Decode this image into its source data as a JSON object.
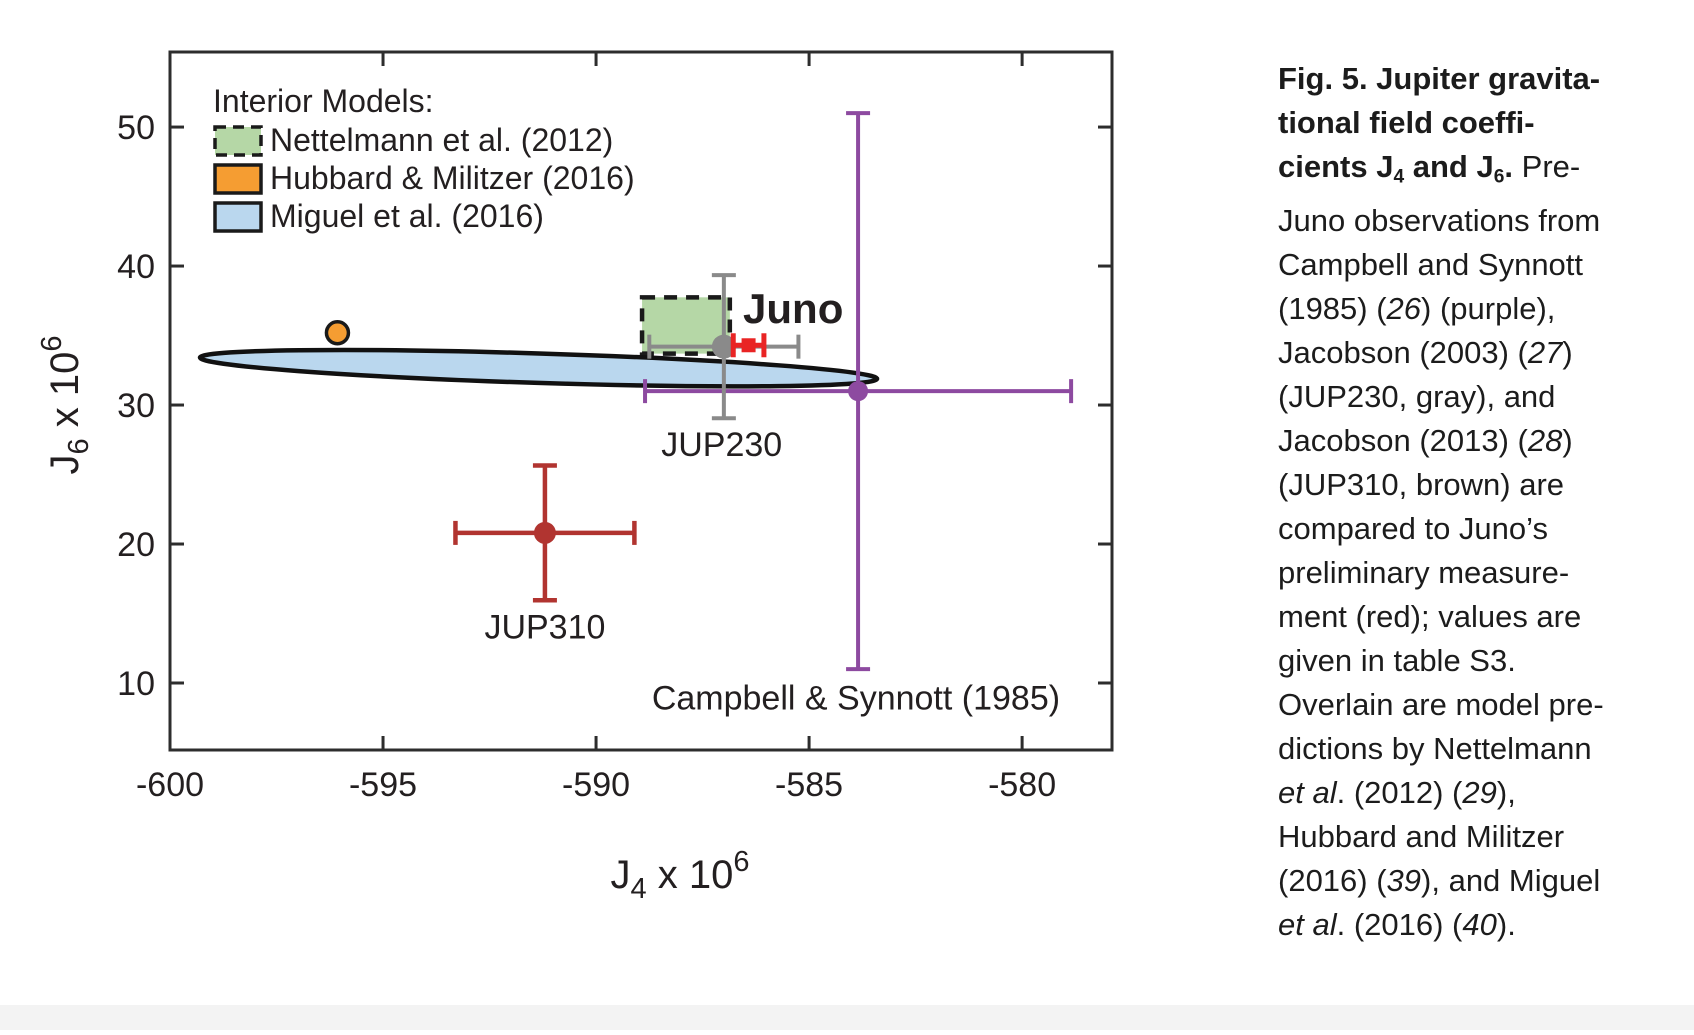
{
  "figure": {
    "kind": "scientific-figure",
    "bottom_strip_color": "#f3f3f3"
  },
  "chart_data": {
    "type": "scatter",
    "xlabel": {
      "pre": "J",
      "sub": "4",
      "mid": " x 10",
      "sup": "6"
    },
    "ylabel": {
      "pre": "J",
      "sub": "6",
      "mid": " x 10",
      "sup": "6"
    },
    "xlim": [
      -600.0,
      -577.89
    ],
    "ylim": [
      5.18,
      55.4
    ],
    "x_ticks": [
      -600,
      -595,
      -590,
      -585,
      -580
    ],
    "y_ticks": [
      10,
      20,
      30,
      40,
      50
    ],
    "grid": false,
    "frame_color": "#2d2d2d",
    "series": [
      {
        "slug": "campbell-synnott-1985",
        "name": "Campbell & Synnott (1985)",
        "x": -583.85,
        "y": 31.0,
        "xerr": 5.0,
        "yerr": 20.0,
        "color": "#8d4aa0",
        "marker": "circle",
        "r": 10,
        "lw": 4,
        "label": {
          "text": "Campbell & Synnott (1985)",
          "x": -583.9,
          "y": 8.1,
          "anchor": "middle",
          "size": 34
        }
      },
      {
        "slug": "jup230",
        "name": "JUP230, Jacobson (2003)",
        "x": -587.0,
        "y": 34.2,
        "xerr": 1.75,
        "yerr": 5.15,
        "color": "#8a8a8a",
        "marker": "circle",
        "r": 12,
        "lw": 4,
        "label": {
          "text": "JUP230",
          "x": -587.05,
          "y": 26.35,
          "anchor": "middle",
          "size": 34
        }
      },
      {
        "slug": "jup310",
        "name": "JUP310, Jacobson (2013)",
        "x": -591.2,
        "y": 20.8,
        "xerr": 2.1,
        "yerr": 4.85,
        "color": "#b13430",
        "marker": "circle",
        "r": 11,
        "lw": 4.5,
        "label": {
          "text": "JUP310",
          "x": -591.2,
          "y": 13.2,
          "anchor": "middle",
          "size": 34
        }
      },
      {
        "slug": "juno",
        "name": "Juno preliminary measurement",
        "x": -586.42,
        "y": 34.3,
        "xerr": 0.36,
        "yerr": 0,
        "color": "#e92424",
        "marker": "square",
        "r": 7,
        "lw": 5,
        "label": {
          "text": "Juno",
          "x": -586.55,
          "y": 35.9,
          "anchor": "start",
          "size": 42,
          "bold": true
        }
      }
    ],
    "models": [
      {
        "slug": "nettelmann-2012-box",
        "name": "Nettelmann et al. (2012)",
        "shape": "rect",
        "x": [
          -588.92,
          -586.86
        ],
        "y": [
          33.7,
          37.75
        ],
        "fill": "#b5d7a6",
        "stroke": "#1a1a1a",
        "dashed": true
      },
      {
        "slug": "hubbard-militzer-2016-point",
        "name": "Hubbard & Militzer (2016)",
        "shape": "point",
        "x": -596.07,
        "y": 35.2,
        "r": 11,
        "fill": "#f59d32",
        "stroke": "#1a1a1a"
      },
      {
        "slug": "miguel-2016-ellipse",
        "name": "Miguel et al. (2016)",
        "shape": "ellipse",
        "cx": -591.35,
        "cy": 32.65,
        "rx": 7.95,
        "ry": 1.06,
        "angle_deg": 1.8,
        "fill": "#bad7ee",
        "stroke": "#111111"
      }
    ],
    "legend": {
      "title": "Interior Models:",
      "position": "top-left-inside",
      "items": [
        {
          "label": "Nettelmann et al. (2012)",
          "fill": "#b5d7a6",
          "stroke": "#1a1a1a",
          "dashed": true
        },
        {
          "label": "Hubbard & Militzer (2016)",
          "fill": "#f59d32",
          "stroke": "#1a1a1a",
          "dashed": false
        },
        {
          "label": "Miguel et al. (2016)",
          "fill": "#bad7ee",
          "stroke": "#1a1a1a",
          "dashed": false
        }
      ]
    }
  },
  "caption": {
    "lines": [
      [
        [
          "b",
          "Fig. 5. Jupiter gravita-"
        ]
      ],
      [
        [
          "b",
          "tional field coeffi-"
        ]
      ],
      [
        [
          "b",
          "cients J"
        ],
        [
          "bsub",
          "4"
        ],
        [
          "b",
          " and J"
        ],
        [
          "bsub",
          "6"
        ],
        [
          "b",
          "."
        ],
        [
          "r",
          " Pre-"
        ]
      ],
      [
        [
          "r",
          "Juno observations from"
        ]
      ],
      [
        [
          "r",
          "Campbell and Synnott"
        ]
      ],
      [
        [
          "r",
          "(1985) ("
        ],
        [
          "i",
          "26"
        ],
        [
          "r",
          ") (purple),"
        ]
      ],
      [
        [
          "r",
          "Jacobson (2003) ("
        ],
        [
          "i",
          "27"
        ],
        [
          "r",
          ")"
        ]
      ],
      [
        [
          "r",
          "(JUP230, gray), and"
        ]
      ],
      [
        [
          "r",
          "Jacobson (2013) ("
        ],
        [
          "i",
          "28"
        ],
        [
          "r",
          ")"
        ]
      ],
      [
        [
          "r",
          "(JUP310, brown) are"
        ]
      ],
      [
        [
          "r",
          "compared to Juno’s"
        ]
      ],
      [
        [
          "r",
          "preliminary measure-"
        ]
      ],
      [
        [
          "r",
          "ment (red); values are"
        ]
      ],
      [
        [
          "r",
          "given in table S3."
        ]
      ],
      [
        [
          "r",
          "Overlain are model pre-"
        ]
      ],
      [
        [
          "r",
          "dictions by Nettelmann"
        ]
      ],
      [
        [
          "i",
          "et al"
        ],
        [
          "r",
          ". (2012) ("
        ],
        [
          "i",
          "29"
        ],
        [
          "r",
          "),"
        ]
      ],
      [
        [
          "r",
          "Hubbard and Militzer"
        ]
      ],
      [
        [
          "r",
          "(2016) ("
        ],
        [
          "i",
          "39"
        ],
        [
          "r",
          "), and Miguel"
        ]
      ],
      [
        [
          "i",
          "et al"
        ],
        [
          "r",
          ". (2016) ("
        ],
        [
          "i",
          "40"
        ],
        [
          "r",
          ")."
        ]
      ]
    ]
  }
}
